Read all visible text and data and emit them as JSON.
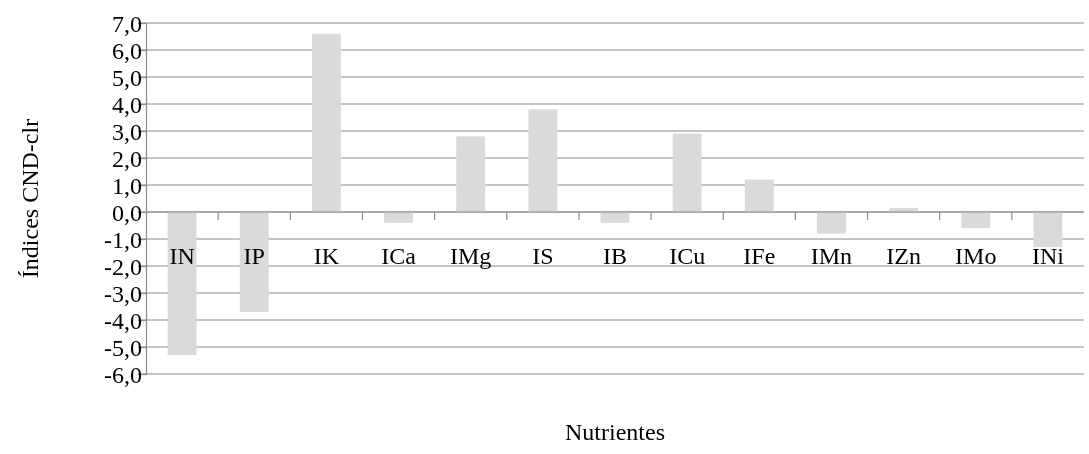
{
  "chart_data": {
    "type": "bar",
    "xlabel": "Nutrientes",
    "ylabel": "Índices CND-clr",
    "categories": [
      "IN",
      "IP",
      "IK",
      "ICa",
      "IMg",
      "IS",
      "IB",
      "ICu",
      "IFe",
      "IMn",
      "IZn",
      "IMo",
      "INi"
    ],
    "values": [
      -5.3,
      -3.7,
      6.6,
      -0.4,
      2.8,
      3.8,
      -0.4,
      2.9,
      1.2,
      -0.8,
      0.15,
      -0.6,
      -1.3
    ],
    "color": "#d9dadb",
    "ylim": [
      -6,
      7
    ],
    "yticks": [
      {
        "value": -6,
        "label": "-6,0"
      },
      {
        "value": -5,
        "label": "-5,0"
      },
      {
        "value": -4,
        "label": "-4,0"
      },
      {
        "value": -3,
        "label": "-3,0"
      },
      {
        "value": -2,
        "label": "-2,0"
      },
      {
        "value": -1,
        "label": "-1,0"
      },
      {
        "value": 0,
        "label": "0,0"
      },
      {
        "value": 1,
        "label": "1,0"
      },
      {
        "value": 2,
        "label": "2,0"
      },
      {
        "value": 3,
        "label": "3,0"
      },
      {
        "value": 4,
        "label": "4,0"
      },
      {
        "value": 5,
        "label": "5,0"
      },
      {
        "value": 6,
        "label": "6,0"
      },
      {
        "value": 7,
        "label": "7,0"
      }
    ],
    "grid": "y"
  }
}
